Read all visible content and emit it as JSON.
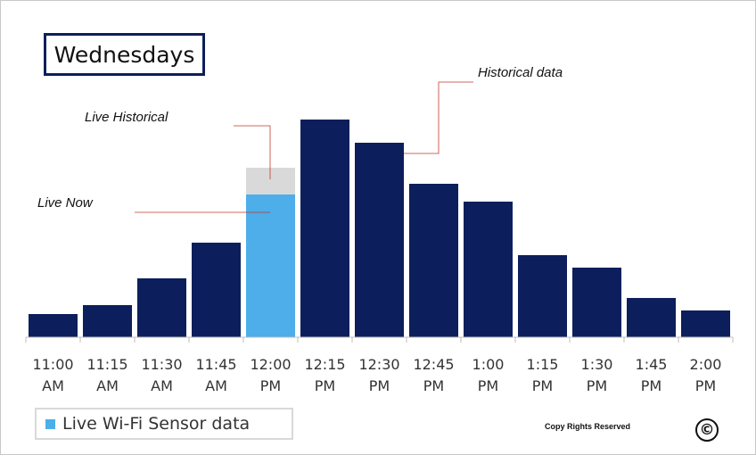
{
  "chart_data": {
    "type": "bar",
    "title": "Wednesdays",
    "categories": [
      [
        "11:00",
        "AM"
      ],
      [
        "11:15",
        "AM"
      ],
      [
        "11:30",
        "AM"
      ],
      [
        "11:45",
        "AM"
      ],
      [
        "12:00",
        "PM"
      ],
      [
        "12:15",
        "PM"
      ],
      [
        "12:30",
        "PM"
      ],
      [
        "12:45",
        "PM"
      ],
      [
        "1:00",
        "PM"
      ],
      [
        "1:15",
        "PM"
      ],
      [
        "1:30",
        "PM"
      ],
      [
        "1:45",
        "PM"
      ],
      [
        "2:00",
        "PM"
      ]
    ],
    "series": [
      {
        "name": "Historical data",
        "color": "#0c1f5c",
        "values": [
          13,
          18,
          33,
          53,
          0,
          122,
          109,
          86,
          76,
          46,
          39,
          22,
          15
        ]
      },
      {
        "name": "Live Wi-Fi Sensor data",
        "color": "#4daeea",
        "values": [
          0,
          0,
          0,
          0,
          80,
          0,
          0,
          0,
          0,
          0,
          0,
          0,
          0
        ]
      },
      {
        "name": "Live Historical",
        "color": "#d9d9d9",
        "values": [
          0,
          0,
          0,
          0,
          15,
          0,
          0,
          0,
          0,
          0,
          0,
          0,
          0
        ]
      }
    ],
    "ylim": [
      0,
      125
    ],
    "grid": false,
    "legend": "bottom-left",
    "annotations": {
      "historical": "Historical data",
      "live_historical": "Live Historical",
      "live_now": "Live Now"
    },
    "legend_label": "Live Wi-Fi Sensor data"
  },
  "footer": {
    "copyright_text": "Copy Rights Reserved",
    "copyright_symbol": "©"
  },
  "colors": {
    "historical": "#0c1f5c",
    "live": "#4daeea",
    "live_historical": "#d9d9d9",
    "annotation_line": "#c0392b"
  }
}
